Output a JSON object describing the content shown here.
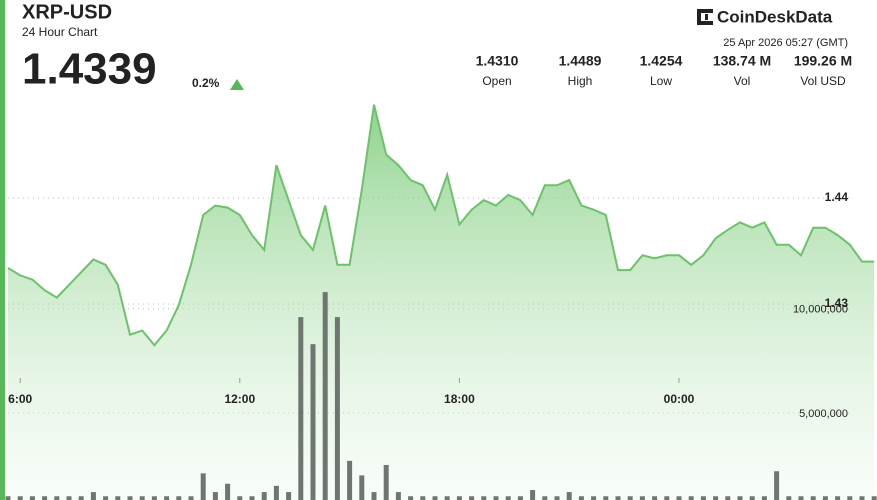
{
  "header": {
    "title": "XRP-USD",
    "subtitle": "24 Hour Chart",
    "price": "1.4339",
    "change": "0.2%",
    "brand": "CoinDeskData",
    "timestamp": "25 Apr 2026 05:27 (GMT)",
    "stats": [
      {
        "value": "1.4310",
        "label": "Open"
      },
      {
        "value": "1.4489",
        "label": "High"
      },
      {
        "value": "1.4254",
        "label": "Low"
      },
      {
        "value": "138.74 M",
        "label": "Vol"
      },
      {
        "value": "199.26 M",
        "label": "Vol USD"
      }
    ]
  },
  "chart_data": {
    "type": "line",
    "categories": [
      null,
      "6:00",
      null,
      null,
      null,
      null,
      null,
      null,
      null,
      null,
      null,
      null,
      null,
      null,
      null,
      null,
      null,
      null,
      null,
      "12:00",
      null,
      null,
      null,
      null,
      null,
      null,
      null,
      null,
      null,
      null,
      null,
      null,
      null,
      null,
      null,
      null,
      null,
      "18:00",
      null,
      null,
      null,
      null,
      null,
      null,
      null,
      null,
      null,
      null,
      null,
      null,
      null,
      null,
      null,
      null,
      null,
      "00:00",
      null,
      null,
      null,
      null,
      null,
      null,
      null,
      null,
      null,
      null,
      null,
      null,
      null,
      null,
      null,
      null
    ],
    "series": [
      {
        "type": "line",
        "color": "#6cc26a",
        "values": [
          1.4334,
          1.4327,
          1.4323,
          1.4313,
          1.4306,
          1.4318,
          1.433,
          1.4342,
          1.4337,
          1.4318,
          1.4271,
          1.4275,
          1.4261,
          1.4275,
          1.4299,
          1.4337,
          1.4384,
          1.4393,
          1.4391,
          1.4384,
          1.4365,
          1.4351,
          1.4431,
          1.4398,
          1.4365,
          1.4351,
          1.4393,
          1.4337,
          1.4337,
          1.4408,
          1.4488,
          1.4441,
          1.4431,
          1.4417,
          1.4412,
          1.4389,
          1.4422,
          1.4375,
          1.4389,
          1.4398,
          1.4393,
          1.4403,
          1.4398,
          1.4384,
          1.4412,
          1.4412,
          1.4417,
          1.4393,
          1.4389,
          1.4384,
          1.4332,
          1.4332,
          1.4346,
          1.4343,
          1.4346,
          1.4346,
          1.4337,
          1.4346,
          1.4362,
          1.437,
          1.4377,
          1.4372,
          1.4377,
          1.4356,
          1.4356,
          1.4346,
          1.4372,
          1.4372,
          1.4365,
          1.4356,
          1.434,
          1.434
        ]
      },
      {
        "type": "bar",
        "axis": "y2",
        "color": "#6e7670",
        "values": [
          1000000,
          1000000,
          1000000,
          1000000,
          1000000,
          1000000,
          1000000,
          1200000,
          1000000,
          1000000,
          1000000,
          1000000,
          1000000,
          1000000,
          1000000,
          1000000,
          2100000,
          1200000,
          1600000,
          1000000,
          1000000,
          1200000,
          1500000,
          1200000,
          9600000,
          8300000,
          10800000,
          9600000,
          2700000,
          2000000,
          1200000,
          2500000,
          1200000,
          1000000,
          1000000,
          1000000,
          1000000,
          1000000,
          1000000,
          1000000,
          1000000,
          1000000,
          1000000,
          1300000,
          1000000,
          1000000,
          1200000,
          1000000,
          1000000,
          1000000,
          1000000,
          1000000,
          1000000,
          1000000,
          1000000,
          1000000,
          1000000,
          1000000,
          1000000,
          1000000,
          1000000,
          1000000,
          1000000,
          2200000,
          1000000,
          1000000,
          1000000,
          1000000,
          1000000,
          1000000,
          1000000,
          1000000
        ]
      }
    ],
    "ylim": [
      1.4115,
      1.4502
    ],
    "yticks": [
      1.43,
      1.44
    ],
    "y2lim": [
      820000,
      20500000
    ],
    "y2ticks": [
      {
        "value": 5000000,
        "label": "5,000,000"
      },
      {
        "value": 10000000,
        "label": "10,000,000"
      }
    ],
    "grid": true
  }
}
